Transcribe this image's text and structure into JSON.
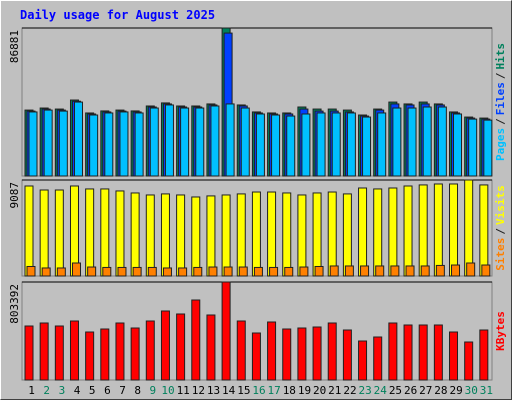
{
  "chart_data": [
    {
      "type": "bar",
      "title": "Daily usage for August 2025",
      "legend_separator": "/",
      "ylim": [
        0,
        86881
      ],
      "yticks": [
        86881
      ],
      "series": [
        {
          "name": "Hits",
          "color": "#00805c",
          "values": [
            38700,
            39900,
            39300,
            44600,
            37000,
            38200,
            38700,
            38200,
            41100,
            42900,
            41100,
            41100,
            42300,
            86881,
            41700,
            37600,
            37000,
            37000,
            40500,
            39300,
            39300,
            38700,
            35800,
            39300,
            43400,
            42300,
            43400,
            42300,
            37600,
            34600,
            34000
          ]
        },
        {
          "name": "Files",
          "color": "#0040ff",
          "values": [
            38100,
            39300,
            38700,
            43900,
            36400,
            37600,
            38100,
            37600,
            40500,
            42300,
            40500,
            40500,
            41700,
            83900,
            41100,
            37000,
            36400,
            36400,
            39300,
            38100,
            38100,
            37600,
            35200,
            38700,
            42300,
            41700,
            42300,
            41700,
            37000,
            34000,
            33400
          ]
        },
        {
          "name": "Pages",
          "color": "#00c0ff",
          "values": [
            37600,
            38700,
            38100,
            43400,
            35800,
            37000,
            37600,
            37000,
            39900,
            41700,
            39900,
            39900,
            41100,
            42300,
            39900,
            36400,
            35800,
            35200,
            36400,
            37000,
            37000,
            37000,
            34600,
            37000,
            39900,
            39900,
            40500,
            40500,
            36400,
            33400,
            32800
          ]
        }
      ]
    },
    {
      "type": "bar",
      "legend_separator": "/",
      "ylim": [
        0,
        9087
      ],
      "yticks": [
        9087
      ],
      "series": [
        {
          "name": "Visits",
          "color": "#ffff00",
          "values": [
            8520,
            8140,
            8140,
            8520,
            8240,
            8240,
            8050,
            7860,
            7670,
            7770,
            7670,
            7480,
            7580,
            7670,
            7770,
            7950,
            7950,
            7860,
            7670,
            7860,
            7950,
            7770,
            8330,
            8240,
            8330,
            8520,
            8620,
            8710,
            8710,
            9087,
            8620
          ]
        },
        {
          "name": "Sites",
          "color": "#ff8000",
          "values": [
            900,
            760,
            760,
            1230,
            850,
            810,
            810,
            810,
            810,
            760,
            760,
            810,
            850,
            850,
            850,
            810,
            810,
            810,
            850,
            900,
            950,
            950,
            950,
            950,
            950,
            950,
            950,
            1000,
            1040,
            1230,
            1040
          ]
        }
      ]
    },
    {
      "type": "bar",
      "ylim": [
        0,
        803392
      ],
      "yticks": [
        803392
      ],
      "categories": [
        "1",
        "2",
        "3",
        "4",
        "5",
        "6",
        "7",
        "8",
        "9",
        "10",
        "11",
        "12",
        "13",
        "14",
        "15",
        "16",
        "17",
        "18",
        "19",
        "20",
        "21",
        "22",
        "23",
        "24",
        "25",
        "26",
        "27",
        "28",
        "29",
        "30",
        "31"
      ],
      "category_colors": [
        "#000000",
        "#00805c",
        "#00805c",
        "#000000",
        "#000000",
        "#000000",
        "#000000",
        "#000000",
        "#00805c",
        "#00805c",
        "#000000",
        "#000000",
        "#000000",
        "#000000",
        "#000000",
        "#00805c",
        "#00805c",
        "#000000",
        "#000000",
        "#000000",
        "#000000",
        "#000000",
        "#00805c",
        "#00805c",
        "#000000",
        "#000000",
        "#000000",
        "#000000",
        "#000000",
        "#00805c",
        "#00805c"
      ],
      "series": [
        {
          "name": "KBytes",
          "color": "#ff0000",
          "values": [
            442700,
            467300,
            442700,
            483700,
            393500,
            418100,
            467300,
            426300,
            483700,
            565700,
            541100,
            655800,
            532900,
            803392,
            483700,
            385300,
            475500,
            418100,
            426300,
            434500,
            467300,
            409900,
            319700,
            352500,
            467300,
            450900,
            450900,
            450900,
            393500,
            311500,
            409900
          ]
        }
      ]
    }
  ]
}
